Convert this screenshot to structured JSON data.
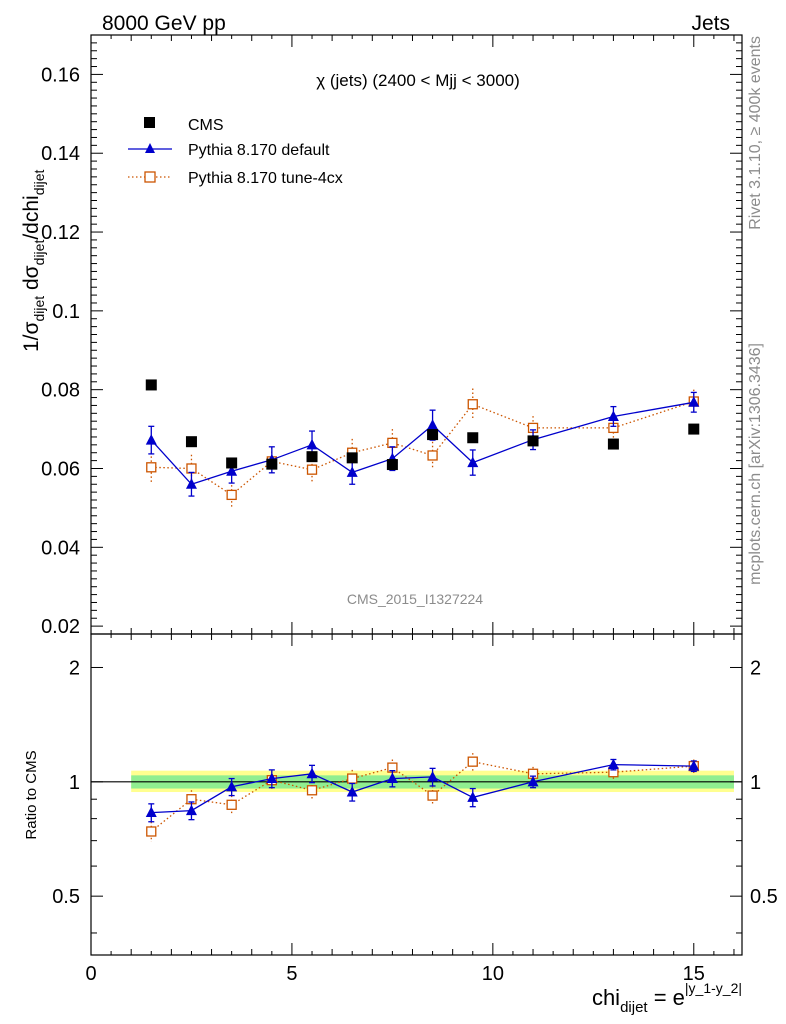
{
  "header": {
    "left": "8000 GeV pp",
    "right": "Jets"
  },
  "side_text": {
    "rivet": "Rivet 3.1.10, ≥ 400k events",
    "mcplots": "mcplots.cern.ch [arXiv:1306.3436]"
  },
  "chart_data": [
    {
      "type": "scatter",
      "title": "χ (jets) (2400 < Mjj < 3000)",
      "watermark": "CMS_2015_I1327224",
      "ylabel": "1/σdijet dσdijet/dchidijet",
      "ylim": [
        0.018,
        0.17
      ],
      "yticks": [
        0.02,
        0.04,
        0.06,
        0.08,
        0.1,
        0.12,
        0.14,
        0.16
      ],
      "ytick_labels": [
        "0.02",
        "0.04",
        "0.06",
        "0.08",
        "0.1",
        "0.12",
        "0.14",
        "0.16"
      ],
      "xlim": [
        0,
        16.2
      ],
      "legend_position": "top-left",
      "series": [
        {
          "name": "CMS",
          "color": "#000000",
          "marker": "square",
          "x": [
            1.5,
            2.5,
            3.5,
            4.5,
            5.5,
            6.5,
            7.5,
            8.5,
            9.5,
            11,
            13,
            15
          ],
          "y": [
            0.0812,
            0.0668,
            0.0614,
            0.0611,
            0.063,
            0.0627,
            0.061,
            0.0686,
            0.0678,
            0.067,
            0.0662,
            0.07
          ]
        },
        {
          "name": "Pythia 8.170 default",
          "color": "#0000cc",
          "marker": "triangle",
          "x": [
            1.5,
            2.5,
            3.5,
            4.5,
            5.5,
            6.5,
            7.5,
            8.5,
            9.5,
            11,
            13,
            15
          ],
          "y": [
            0.0672,
            0.056,
            0.0593,
            0.0622,
            0.066,
            0.059,
            0.0625,
            0.071,
            0.0615,
            0.0673,
            0.0732,
            0.0768
          ],
          "err": [
            0.0035,
            0.003,
            0.003,
            0.0033,
            0.0035,
            0.003,
            0.003,
            0.0038,
            0.0032,
            0.0025,
            0.0025,
            0.0025
          ]
        },
        {
          "name": "Pythia 8.170 tune-4cx",
          "color": "#cc5500",
          "marker": "open-square",
          "x": [
            1.5,
            2.5,
            3.5,
            4.5,
            5.5,
            6.5,
            7.5,
            8.5,
            9.5,
            11,
            13,
            15
          ],
          "y": [
            0.0603,
            0.06,
            0.0533,
            0.0618,
            0.0597,
            0.064,
            0.0665,
            0.0633,
            0.0763,
            0.0703,
            0.0703,
            0.077
          ],
          "err": [
            0.0038,
            0.0035,
            0.0035,
            0.0035,
            0.0035,
            0.0035,
            0.0035,
            0.0035,
            0.004,
            0.003,
            0.003,
            0.003
          ]
        }
      ]
    },
    {
      "type": "scatter",
      "ylabel": "Ratio to CMS",
      "xlabel": "chi_dijet = e^|y_1-y_2|",
      "xlim": [
        0,
        16.2
      ],
      "ylim": [
        0.35,
        2.45
      ],
      "y_scale": "log",
      "yticks": [
        0.5,
        1,
        2
      ],
      "ytick_labels": [
        "0.5",
        "1",
        "2"
      ],
      "xticks": [
        0,
        5,
        10,
        15
      ],
      "xtick_labels": [
        "0",
        "5",
        "10",
        "15"
      ],
      "band_x": [
        1,
        16
      ],
      "band_inner": [
        0.96,
        1.04
      ],
      "band_outer": [
        0.94,
        1.07
      ],
      "band_inner_color": "#90ee90",
      "band_outer_color": "#ffff90",
      "series": [
        {
          "name": "Pythia 8.170 default",
          "color": "#0000cc",
          "marker": "triangle",
          "x": [
            1.5,
            2.5,
            3.5,
            4.5,
            5.5,
            6.5,
            7.5,
            8.5,
            9.5,
            11,
            13,
            15
          ],
          "y": [
            0.83,
            0.84,
            0.97,
            1.02,
            1.05,
            0.94,
            1.02,
            1.03,
            0.91,
            1.0,
            1.11,
            1.1
          ],
          "err": [
            0.045,
            0.045,
            0.05,
            0.055,
            0.055,
            0.05,
            0.05,
            0.055,
            0.05,
            0.035,
            0.035,
            0.035
          ]
        },
        {
          "name": "Pythia 8.170 tune-4cx",
          "color": "#cc5500",
          "marker": "open-square",
          "x": [
            1.5,
            2.5,
            3.5,
            4.5,
            5.5,
            6.5,
            7.5,
            8.5,
            9.5,
            11,
            13,
            15
          ],
          "y": [
            0.74,
            0.9,
            0.87,
            1.01,
            0.95,
            1.02,
            1.09,
            0.92,
            1.13,
            1.05,
            1.06,
            1.1
          ],
          "err": [
            0.045,
            0.05,
            0.05,
            0.055,
            0.055,
            0.055,
            0.055,
            0.055,
            0.06,
            0.045,
            0.045,
            0.045
          ]
        }
      ]
    }
  ]
}
